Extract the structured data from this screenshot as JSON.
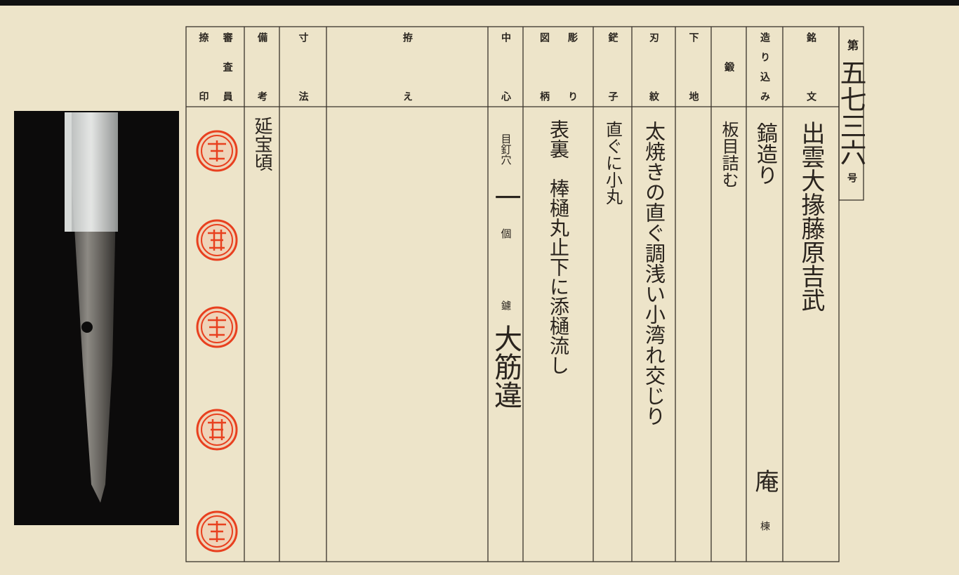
{
  "certificate": {
    "number": {
      "prefix": "第",
      "value": "五七三六",
      "suffix": "号"
    },
    "columns": [
      {
        "header": [
          "銘文"
        ],
        "entries": [
          "出雲大掾藤原吉武"
        ]
      },
      {
        "header": [
          "造り込み"
        ],
        "entries": [
          "鎬造り",
          "庵",
          "棟"
        ]
      },
      {
        "header": [
          "鍛"
        ],
        "entries": [
          "板目詰む"
        ]
      },
      {
        "header": [
          "下地"
        ],
        "entries": []
      },
      {
        "header": [
          "刃紋"
        ],
        "entries": [
          "太焼きの直ぐ調浅い小湾れ交じり"
        ]
      },
      {
        "header": [
          "鋩子"
        ],
        "entries": [
          "直ぐに小丸"
        ]
      },
      {
        "header": [
          "彫り",
          "図柄"
        ],
        "entries": [
          "表裏　棒樋丸止下に添樋流し"
        ]
      },
      {
        "header": [
          "中心"
        ],
        "entries": [
          "目釘穴",
          "一",
          "個",
          "鑢",
          "大筋違"
        ]
      },
      {
        "header": [
          "拵え"
        ],
        "entries": []
      },
      {
        "header": [
          "寸法"
        ],
        "entries": []
      },
      {
        "header": [
          "備考"
        ],
        "entries": [
          "延宝頃"
        ]
      },
      {
        "header": [
          "審査員",
          "捺　印"
        ],
        "entries": []
      }
    ]
  }
}
